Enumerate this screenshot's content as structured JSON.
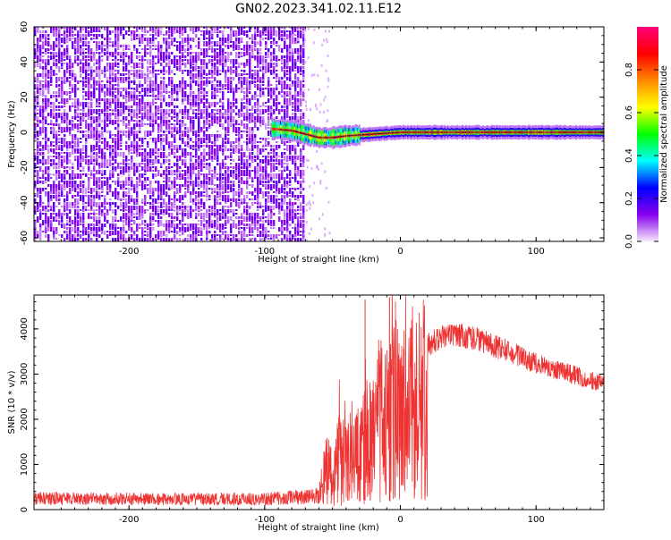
{
  "title": "GN02.2023.341.02.11.E12",
  "chart_data": [
    {
      "type": "heatmap",
      "xlabel": "Height of straight line (km)",
      "ylabel": "Frequency (Hz)",
      "xlim": [
        -270,
        150
      ],
      "ylim": [
        -62,
        60
      ],
      "x_ticks": [
        -200,
        -100,
        0,
        100
      ],
      "y_ticks": [
        -60,
        -40,
        -20,
        0,
        20,
        40,
        60
      ],
      "colorbar": {
        "label": "Normalized spectral amplitude",
        "range": [
          0,
          1
        ],
        "ticks": [
          "0.0",
          "0.2",
          "0.4",
          "0.6",
          "0.8"
        ],
        "colormap": [
          "#f6e9fb",
          "#8800ee",
          "#0000ff",
          "#00ffff",
          "#00ff00",
          "#ffff00",
          "#ff8800",
          "#ff0000",
          "#ff0077"
        ]
      },
      "regions": [
        {
          "name": "broadband noise",
          "x_range": [
            -270,
            -72
          ],
          "freq_range": [
            -62,
            60
          ],
          "amplitude": "low-mid"
        },
        {
          "name": "narrowband trace",
          "x_range": [
            -95,
            150
          ],
          "freq_hz": 0,
          "amplitude_peak": 0.9
        }
      ],
      "trace_centre_freq": [
        {
          "x": -95,
          "y": 2
        },
        {
          "x": -80,
          "y": 1
        },
        {
          "x": -70,
          "y": -1
        },
        {
          "x": -60,
          "y": -3
        },
        {
          "x": -50,
          "y": -3
        },
        {
          "x": -40,
          "y": -2
        },
        {
          "x": -20,
          "y": -1
        },
        {
          "x": 0,
          "y": 0
        },
        {
          "x": 50,
          "y": 0
        },
        {
          "x": 150,
          "y": 0
        }
      ]
    },
    {
      "type": "line",
      "xlabel": "Height of straight line (km)",
      "ylabel": "SNR (10 * v/v)",
      "xlim": [
        -270,
        150
      ],
      "ylim": [
        0,
        4750
      ],
      "x_ticks": [
        -200,
        -100,
        0,
        100
      ],
      "y_ticks": [
        0,
        1000,
        2000,
        3000,
        4000
      ],
      "color": "#ee3333",
      "series": [
        {
          "x": [
            -270,
            -200,
            -100,
            -60,
            -55,
            -50,
            -45,
            -40,
            -35,
            -30,
            -25,
            -20,
            -15,
            -10,
            -5,
            0,
            10,
            20,
            30,
            40,
            50,
            60,
            80,
            100,
            120,
            150
          ],
          "y": [
            280,
            270,
            270,
            350,
            1300,
            1000,
            1700,
            1500,
            1900,
            1700,
            2300,
            2200,
            3000,
            2700,
            3300,
            3200,
            3500,
            3750,
            3950,
            4000,
            3950,
            3850,
            3600,
            3350,
            3150,
            2850
          ],
          "peaks": [
            {
              "x": -26,
              "y": 4650
            },
            {
              "x": -8,
              "y": 4700
            }
          ]
        }
      ]
    }
  ]
}
